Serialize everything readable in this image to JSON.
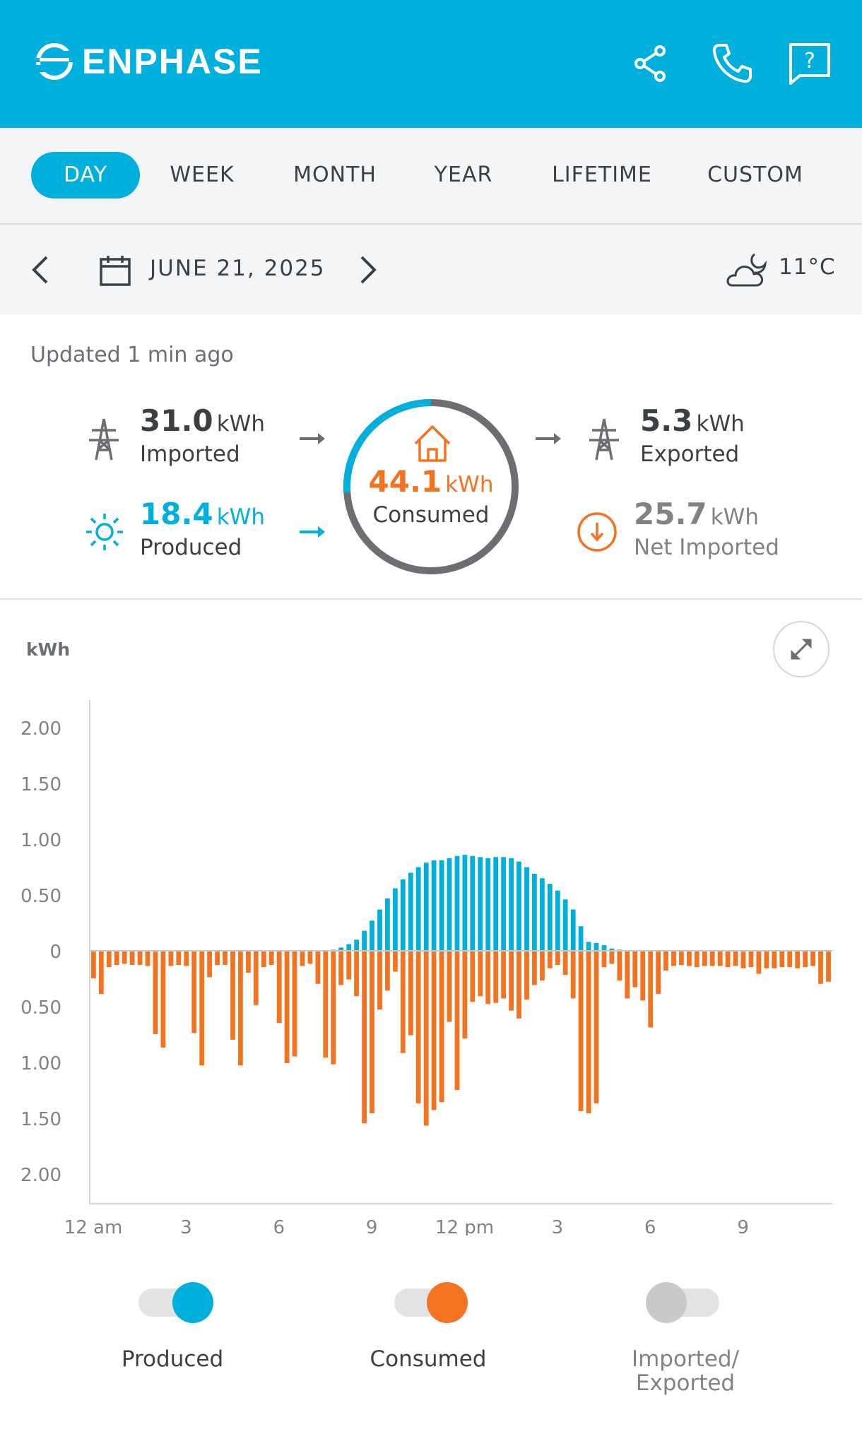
{
  "header": {
    "brand": "ENPHASE"
  },
  "tabs": [
    {
      "label": "DAY",
      "active": true
    },
    {
      "label": "WEEK",
      "active": false
    },
    {
      "label": "MONTH",
      "active": false
    },
    {
      "label": "YEAR",
      "active": false
    },
    {
      "label": "LIFETIME",
      "active": false
    },
    {
      "label": "CUSTOM",
      "active": false
    }
  ],
  "date_bar": {
    "date": "JUNE 21, 2025",
    "temperature": "11°C"
  },
  "summary": {
    "updated": "Updated 1 min ago",
    "imported": {
      "value": "31.0",
      "unit": "kWh",
      "label": "Imported"
    },
    "produced": {
      "value": "18.4",
      "unit": "kWh",
      "label": "Produced"
    },
    "consumed": {
      "value": "44.1",
      "unit": "kWh",
      "label": "Consumed"
    },
    "exported": {
      "value": "5.3",
      "unit": "kWh",
      "label": "Exported"
    },
    "net_imported": {
      "value": "25.7",
      "unit": "kWh",
      "label": "Net Imported"
    }
  },
  "colors": {
    "produced": "#00b0dc",
    "consumed": "#f37321",
    "grid": "#6d6e71",
    "header": "#00b0dc"
  },
  "chart_data": {
    "type": "bar",
    "ylabel": "kWh",
    "ylim": [
      -2.0,
      2.0
    ],
    "y_ticks": [
      "2.00",
      "1.50",
      "1.00",
      "0.50",
      "0",
      "0.50",
      "1.00",
      "1.50",
      "2.00"
    ],
    "x_ticks": [
      "12 am",
      "3",
      "6",
      "9",
      "12 pm",
      "3",
      "6",
      "9"
    ],
    "interval": "15 min",
    "series": [
      {
        "name": "Produced",
        "values": [
          0,
          0,
          0,
          0,
          0,
          0,
          0,
          0,
          0,
          0,
          0,
          0,
          0,
          0,
          0,
          0,
          0,
          0,
          0,
          0,
          0,
          0,
          0,
          0,
          0,
          0,
          0,
          0,
          0,
          0,
          0,
          0.01,
          0.03,
          0.06,
          0.1,
          0.18,
          0.27,
          0.37,
          0.47,
          0.56,
          0.64,
          0.7,
          0.75,
          0.79,
          0.81,
          0.81,
          0.83,
          0.85,
          0.86,
          0.85,
          0.84,
          0.83,
          0.84,
          0.84,
          0.83,
          0.8,
          0.75,
          0.69,
          0.65,
          0.6,
          0.54,
          0.46,
          0.37,
          0.22,
          0.08,
          0.07,
          0.05,
          0.02,
          0.01,
          0,
          0,
          0,
          0,
          0,
          0,
          0,
          0,
          0,
          0,
          0,
          0,
          0,
          0,
          0,
          0,
          0,
          0,
          0,
          0,
          0,
          0,
          0,
          0,
          0,
          0,
          0
        ]
      },
      {
        "name": "Consumed",
        "values": [
          0.24,
          0.38,
          0.14,
          0.12,
          0.11,
          0.12,
          0.12,
          0.13,
          0.74,
          0.86,
          0.13,
          0.12,
          0.13,
          0.73,
          1.02,
          0.23,
          0.12,
          0.12,
          0.79,
          1.02,
          0.19,
          0.48,
          0.14,
          0.12,
          0.64,
          1.0,
          0.94,
          0.13,
          0.11,
          0.29,
          0.95,
          1.01,
          0.3,
          0.25,
          0.4,
          1.54,
          1.45,
          0.52,
          0.35,
          0.18,
          0.91,
          0.75,
          1.36,
          1.56,
          1.42,
          1.35,
          0.63,
          1.24,
          0.78,
          0.45,
          0.4,
          0.47,
          0.46,
          0.42,
          0.53,
          0.6,
          0.43,
          0.3,
          0.26,
          0.15,
          0.12,
          0.21,
          0.42,
          1.43,
          1.45,
          1.36,
          0.14,
          0.11,
          0.26,
          0.42,
          0.32,
          0.44,
          0.68,
          0.38,
          0.17,
          0.13,
          0.12,
          0.13,
          0.14,
          0.13,
          0.13,
          0.13,
          0.14,
          0.13,
          0.15,
          0.14,
          0.2,
          0.15,
          0.15,
          0.14,
          0.14,
          0.15,
          0.14,
          0.13,
          0.29,
          0.27
        ]
      }
    ]
  },
  "legend": [
    {
      "label": "Produced",
      "on": true
    },
    {
      "label": "Consumed",
      "on": true
    },
    {
      "label": "Imported/",
      "label2": "Exported",
      "on": false
    }
  ]
}
